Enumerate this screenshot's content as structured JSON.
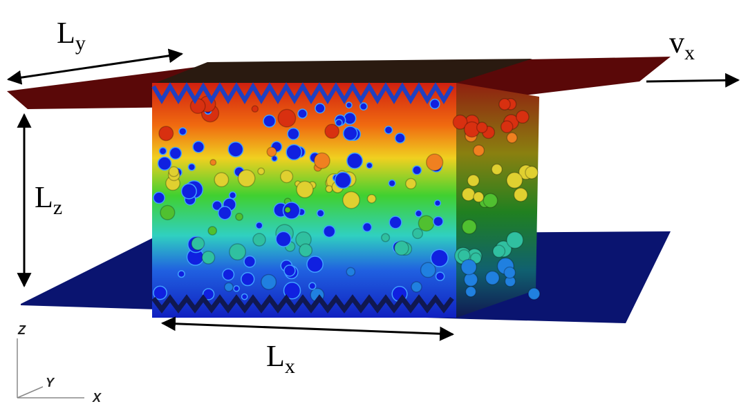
{
  "labels": [
    {
      "base": "L",
      "sub": "y"
    },
    {
      "base": "v",
      "sub": "x"
    },
    {
      "base": "L",
      "sub": "z"
    },
    {
      "base": "L",
      "sub": "x"
    }
  ],
  "axes": [
    "Z",
    "Y",
    "X"
  ]
}
